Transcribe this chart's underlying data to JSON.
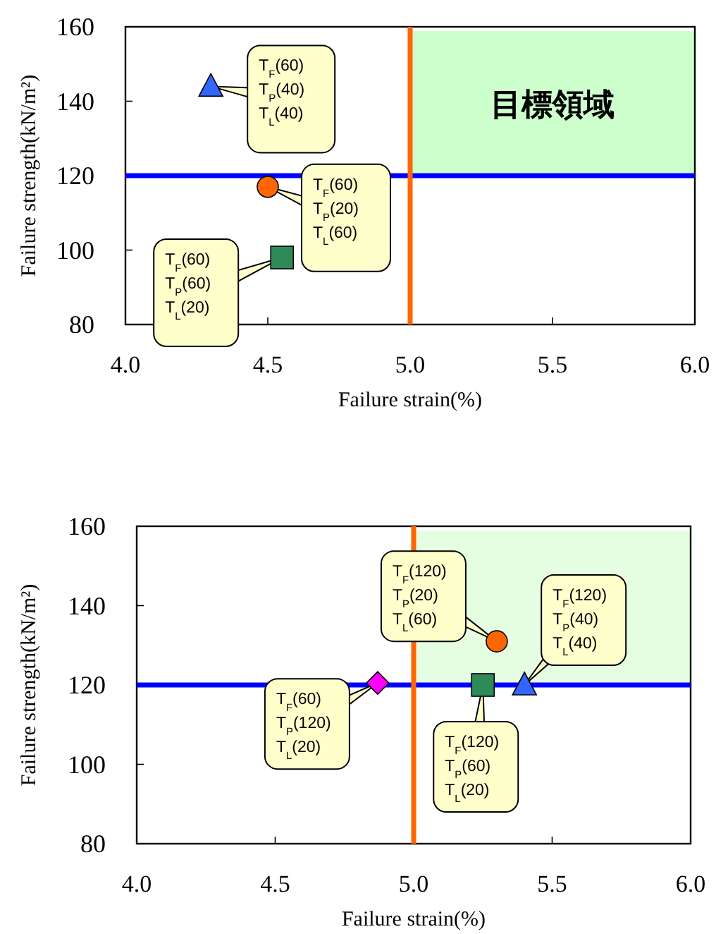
{
  "chart_data": [
    {
      "type": "scatter",
      "xlabel": "Failure strain(%)",
      "ylabel": "Failure strength(kN/m²)",
      "xlim": [
        4,
        6
      ],
      "ylim": [
        80,
        160
      ],
      "xticks": [
        {
          "value": 4,
          "label": "4.0"
        },
        {
          "value": 4.5,
          "label": "4.5"
        },
        {
          "value": 5,
          "label": "5.0"
        },
        {
          "value": 5.5,
          "label": "5.5"
        },
        {
          "value": 6,
          "label": "6.0"
        }
      ],
      "yticks": [
        80,
        100,
        120,
        140,
        160
      ],
      "ref_lines": [
        {
          "axis": "y",
          "value": 120,
          "color": "#0000ff"
        },
        {
          "axis": "x",
          "value": 5,
          "color": "#ff6600"
        }
      ],
      "bands": [
        {
          "axis": "x",
          "from": 5,
          "to": 6,
          "label": "目標領域",
          "color": "#ccffcc"
        }
      ],
      "series": [
        {
          "color": "#3366ff",
          "marker": "triangle",
          "x": [
            4.3
          ],
          "values": [
            144
          ]
        },
        {
          "color": "#ff6600",
          "marker": "circle",
          "x": [
            4.5
          ],
          "values": [
            117
          ]
        },
        {
          "color": "#2e8b57",
          "marker": "square",
          "x": [
            4.55
          ],
          "values": [
            98
          ]
        }
      ],
      "annotations": [
        {
          "text": "T$_{F}$(60)",
          "x": 4.3,
          "y": 144
        },
        {
          "text": "T$_{P}$(40)",
          "x": 4.3,
          "y": 144
        },
        {
          "text": "T$_{L}$(40)",
          "x": 4.3,
          "y": 144
        },
        {
          "text": "T$_{F}$(60)",
          "x": 4.5,
          "y": 117
        },
        {
          "text": "T$_{P}$(20)",
          "x": 4.5,
          "y": 117
        },
        {
          "text": "T$_{L}$(60)",
          "x": 4.5,
          "y": 117
        },
        {
          "text": "T$_{F}$(60)",
          "x": 4.55,
          "y": 98
        },
        {
          "text": "T$_{P}$(60)",
          "x": 4.55,
          "y": 98
        },
        {
          "text": "T$_{L}$(20)",
          "x": 4.55,
          "y": 98
        }
      ]
    },
    {
      "type": "scatter",
      "xlabel": "Failure strain(%)",
      "ylabel": "Failure strength(kN/m²)",
      "xlim": [
        4,
        6
      ],
      "ylim": [
        80,
        160
      ],
      "xticks": [
        {
          "value": 4,
          "label": "4.0"
        },
        {
          "value": 4.5,
          "label": "4.5"
        },
        {
          "value": 5,
          "label": "5.0"
        },
        {
          "value": 5.5,
          "label": "5.5"
        },
        {
          "value": 6,
          "label": "6.0"
        }
      ],
      "yticks": [
        80,
        100,
        120,
        140,
        160
      ],
      "ref_lines": [
        {
          "axis": "y",
          "value": 120,
          "color": "#0000ff"
        },
        {
          "axis": "x",
          "value": 5,
          "color": "#ff6600"
        }
      ],
      "bands": [
        {
          "axis": "x",
          "from": 5,
          "to": 6,
          "color": "#e5fde0"
        }
      ],
      "series": [
        {
          "color": "#ff6600",
          "marker": "circle",
          "x": [
            5.3
          ],
          "values": [
            131
          ]
        },
        {
          "color": "#3366ff",
          "marker": "triangle",
          "x": [
            5.4
          ],
          "values": [
            120
          ]
        },
        {
          "color": "#ff00ff",
          "marker": "diamond",
          "x": [
            4.87
          ],
          "values": [
            120.5
          ]
        },
        {
          "color": "#2e8b57",
          "marker": "square",
          "x": [
            5.25
          ],
          "values": [
            120
          ]
        }
      ],
      "annotations": [
        "T$_{F}$(120)",
        "T$_{P}$(20)",
        "T$_{L}$(60)",
        "T$_{F}$(120)",
        "T$_{P}$(40)",
        "T$_{L}$(40)",
        "T$_{F}$(60)",
        "T$_{P}$(120)",
        "T$_{L}$(20)",
        "T$_{F}$(120)",
        "T$_{P}$(60)",
        "T$_{L}$(20)"
      ]
    }
  ]
}
